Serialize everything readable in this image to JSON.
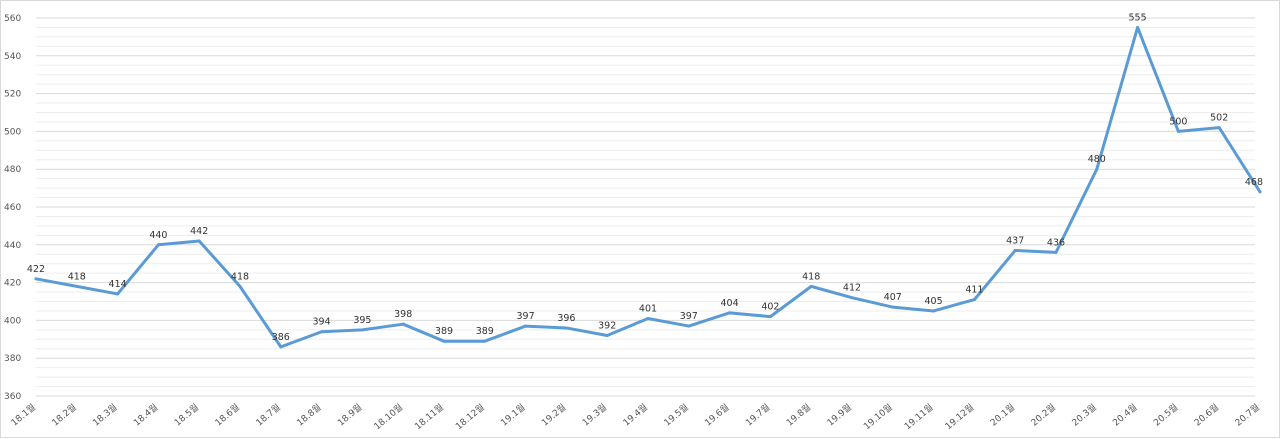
{
  "chart_data": {
    "type": "line",
    "categories": [
      "18.1월",
      "18.2월",
      "18.3월",
      "18.4월",
      "18.5월",
      "18.6월",
      "18.7월",
      "18.8월",
      "18.9월",
      "18.10월",
      "18.11월",
      "18.12월",
      "19.1월",
      "19.2월",
      "19.3월",
      "19.4월",
      "19.5월",
      "19.6월",
      "19.7월",
      "19.8월",
      "19.9월",
      "19.10월",
      "19.11월",
      "19.12월",
      "20.1월",
      "20.2월",
      "20.3월",
      "20.4월",
      "20.5월",
      "20.6월",
      "20.7월"
    ],
    "values": [
      422,
      418,
      414,
      440,
      442,
      418,
      386,
      394,
      395,
      398,
      389,
      389,
      397,
      396,
      392,
      401,
      397,
      404,
      402,
      418,
      412,
      407,
      405,
      411,
      437,
      436,
      480,
      555,
      500,
      502,
      468
    ],
    "ylim": [
      360,
      560
    ],
    "yticks": [
      360,
      380,
      400,
      420,
      440,
      460,
      480,
      500,
      520,
      540,
      560
    ],
    "line_color": "#5b9bd5",
    "grid": true,
    "legend": "none",
    "title": "",
    "xlabel": "",
    "ylabel": ""
  }
}
